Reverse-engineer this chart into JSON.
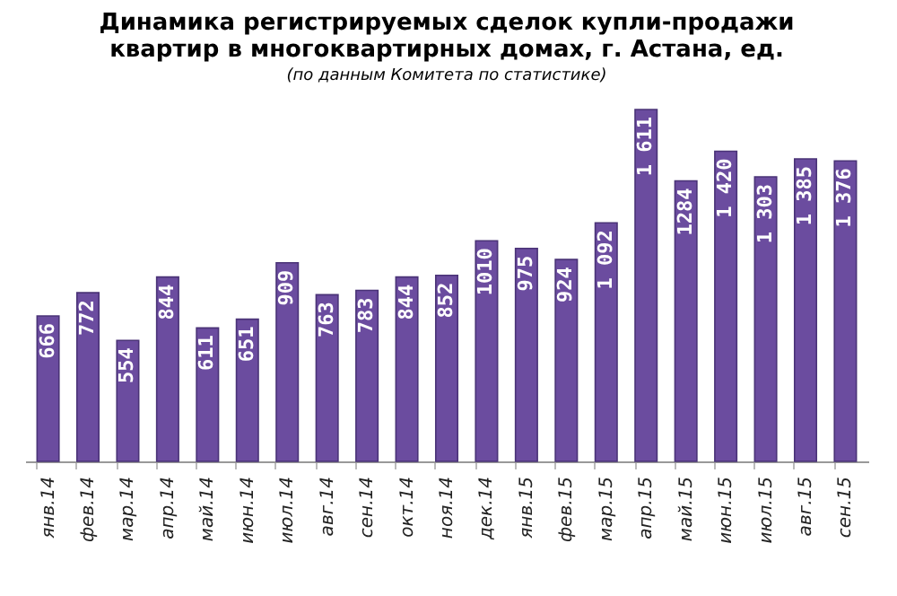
{
  "chart_data": {
    "type": "bar",
    "title": [
      "Динамика регистрируемых сделок купли-продажи",
      "квартир в многоквартирных домах, г. Астана, ед."
    ],
    "subtitle": "(по данным Комитета по статистике)",
    "categories": [
      "янв.14",
      "фев.14",
      "мар.14",
      "апр.14",
      "май.14",
      "июн.14",
      "июл.14",
      "авг.14",
      "сен.14",
      "окт.14",
      "ноя.14",
      "дек.14",
      "янв.15",
      "фев.15",
      "мар.15",
      "апр.15",
      "май.15",
      "июн.15",
      "июл.15",
      "авг.15",
      "сен.15"
    ],
    "values": [
      666,
      772,
      554,
      844,
      611,
      651,
      909,
      763,
      783,
      844,
      852,
      1010,
      975,
      924,
      1092,
      1611,
      1284,
      1420,
      1303,
      1385,
      1376
    ],
    "value_labels": [
      "666",
      "772",
      "554",
      "844",
      "611",
      "651",
      "909",
      "763",
      "783",
      "844",
      "852",
      "1010",
      "975",
      "924",
      "1 092",
      "1 611",
      "1284",
      "1 420",
      "1 303",
      "1 385",
      "1 376"
    ],
    "color": "#6b4c9f"
  }
}
